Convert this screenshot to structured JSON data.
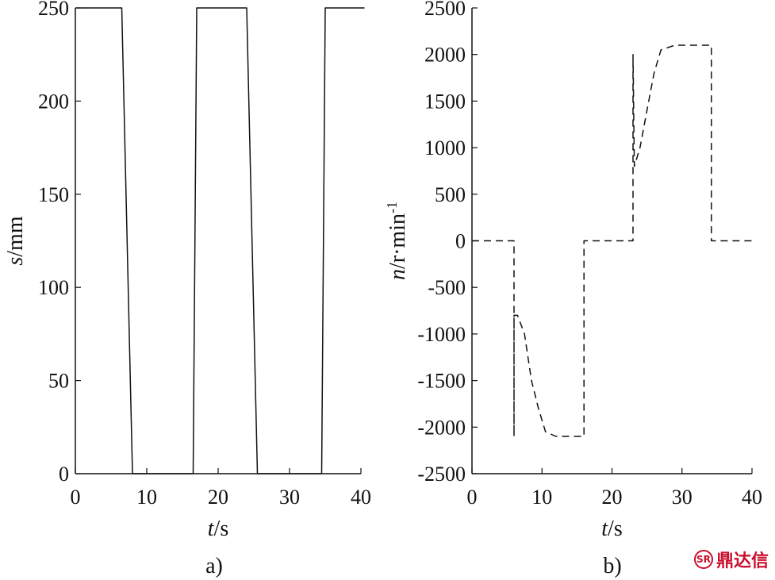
{
  "chart_data": [
    {
      "type": "line",
      "panel_label": "a)",
      "xlabel": {
        "var": "t",
        "unit": "/s"
      },
      "ylabel": {
        "var": "s",
        "unit": "/mm"
      },
      "xlim": [
        0,
        40
      ],
      "ylim": [
        0,
        250
      ],
      "xticks": [
        0,
        10,
        20,
        30,
        40
      ],
      "yticks": [
        0,
        50,
        100,
        150,
        200,
        250
      ],
      "grid": false,
      "series": [
        {
          "style": "solid",
          "x": [
            0,
            6.5,
            8.0,
            16.5,
            17.0,
            24.0,
            25.5,
            34.5,
            35.0,
            40.5
          ],
          "y": [
            250,
            250,
            0,
            0,
            250,
            250,
            0,
            0,
            250,
            250
          ]
        }
      ]
    },
    {
      "type": "line",
      "panel_label": "b)",
      "xlabel": {
        "var": "t",
        "unit": "/s"
      },
      "ylabel": {
        "var": "n",
        "unit": "/r·min",
        "sup": "-1"
      },
      "xlim": [
        0,
        40
      ],
      "ylim": [
        -2500,
        2500
      ],
      "xticks": [
        0,
        10,
        20,
        30,
        40
      ],
      "yticks": [
        -2500,
        -2000,
        -1500,
        -1000,
        -500,
        0,
        500,
        1000,
        1500,
        2000,
        2500
      ],
      "grid": false,
      "series": [
        {
          "style": "dashed",
          "x": [
            0,
            6.0,
            6.0,
            6.0,
            6.5,
            7.5,
            8.5,
            9.5,
            10.5,
            12.0,
            14.0,
            16.0,
            16.0,
            18.0,
            23.0,
            23.0,
            23.2,
            24.0,
            25.0,
            26.0,
            27.0,
            29.0,
            31.0,
            33.0,
            34.2,
            34.2,
            36.0,
            40.5
          ],
          "y": [
            0,
            0,
            -2100,
            -800,
            -800,
            -1000,
            -1500,
            -1800,
            -2050,
            -2100,
            -2100,
            -2100,
            0,
            0,
            0,
            2000,
            800,
            1000,
            1400,
            1800,
            2050,
            2100,
            2100,
            2100,
            2100,
            0,
            0,
            0
          ]
        }
      ]
    }
  ],
  "watermark": {
    "text": "鼎达信",
    "logo": "sr-logo"
  }
}
